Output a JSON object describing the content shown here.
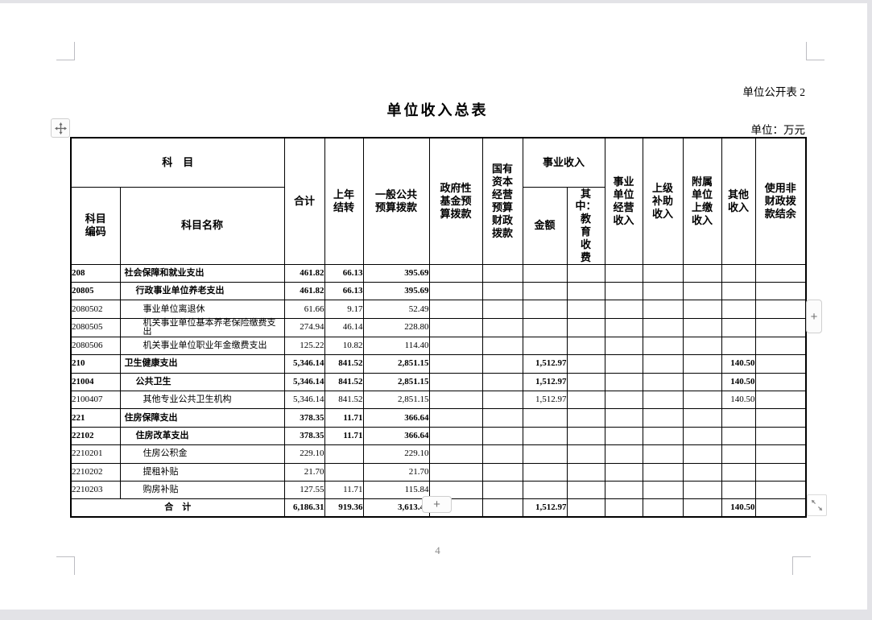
{
  "doc": {
    "corner_label": "单位公开表 2",
    "title": "单位收入总表",
    "unit_note": "单位：万元",
    "page_number": "4"
  },
  "table": {
    "header": {
      "subject": "科　目",
      "subject_code": "科目\n编码",
      "subject_name": "科目名称",
      "total": "合计",
      "prev_year_carryover": "上年\n结转",
      "general_public_budget": "一般公共\n预算拨款",
      "gov_fund_budget": "政府性\n基金预\n算拨款",
      "state_capital_budget": "国有\n资本\n经营\n预算\n财政\n拨款",
      "business_income": "事业收入",
      "business_income_amount": "金额",
      "business_income_education": "其\n中：\n教\n育\n收\n费",
      "business_operating_income": "事业\n单位\n经营\n收入",
      "superior_subsidy_income": "上级\n补助\n收入",
      "affiliated_remitted_income": "附属\n单位\n上缴\n收入",
      "other_income": "其他\n收入",
      "non_fiscal_balance": "使用非\n财政拨\n款结余"
    },
    "rows": [
      {
        "code": "208",
        "name": "社会保障和就业支出",
        "level": 1,
        "bold": true,
        "values": [
          "461.82",
          "66.13",
          "395.69",
          "",
          "",
          "",
          "",
          "",
          "",
          "",
          "",
          ""
        ]
      },
      {
        "code": "20805",
        "name": "行政事业单位养老支出",
        "level": 2,
        "bold": true,
        "values": [
          "461.82",
          "66.13",
          "395.69",
          "",
          "",
          "",
          "",
          "",
          "",
          "",
          "",
          ""
        ]
      },
      {
        "code": "2080502",
        "name": "事业单位离退休",
        "level": 3,
        "bold": false,
        "values": [
          "61.66",
          "9.17",
          "52.49",
          "",
          "",
          "",
          "",
          "",
          "",
          "",
          "",
          ""
        ]
      },
      {
        "code": "2080505",
        "name": "机关事业单位基本养老保险缴费支出",
        "level": 3,
        "bold": false,
        "values": [
          "274.94",
          "46.14",
          "228.80",
          "",
          "",
          "",
          "",
          "",
          "",
          "",
          "",
          ""
        ]
      },
      {
        "code": "2080506",
        "name": "机关事业单位职业年金缴费支出",
        "level": 3,
        "bold": false,
        "values": [
          "125.22",
          "10.82",
          "114.40",
          "",
          "",
          "",
          "",
          "",
          "",
          "",
          "",
          ""
        ]
      },
      {
        "code": "210",
        "name": "卫生健康支出",
        "level": 1,
        "bold": true,
        "values": [
          "5,346.14",
          "841.52",
          "2,851.15",
          "",
          "",
          "1,512.97",
          "",
          "",
          "",
          "",
          "140.50",
          ""
        ]
      },
      {
        "code": "21004",
        "name": "公共卫生",
        "level": 2,
        "bold": true,
        "values": [
          "5,346.14",
          "841.52",
          "2,851.15",
          "",
          "",
          "1,512.97",
          "",
          "",
          "",
          "",
          "140.50",
          ""
        ]
      },
      {
        "code": "2100407",
        "name": "其他专业公共卫生机构",
        "level": 3,
        "bold": false,
        "values": [
          "5,346.14",
          "841.52",
          "2,851.15",
          "",
          "",
          "1,512.97",
          "",
          "",
          "",
          "",
          "140.50",
          ""
        ]
      },
      {
        "code": "221",
        "name": "住房保障支出",
        "level": 1,
        "bold": true,
        "values": [
          "378.35",
          "11.71",
          "366.64",
          "",
          "",
          "",
          "",
          "",
          "",
          "",
          "",
          ""
        ]
      },
      {
        "code": "22102",
        "name": "住房改革支出",
        "level": 2,
        "bold": true,
        "values": [
          "378.35",
          "11.71",
          "366.64",
          "",
          "",
          "",
          "",
          "",
          "",
          "",
          "",
          ""
        ]
      },
      {
        "code": "2210201",
        "name": "住房公积金",
        "level": 3,
        "bold": false,
        "values": [
          "229.10",
          "",
          "229.10",
          "",
          "",
          "",
          "",
          "",
          "",
          "",
          "",
          ""
        ]
      },
      {
        "code": "2210202",
        "name": "提租补贴",
        "level": 3,
        "bold": false,
        "values": [
          "21.70",
          "",
          "21.70",
          "",
          "",
          "",
          "",
          "",
          "",
          "",
          "",
          ""
        ]
      },
      {
        "code": "2210203",
        "name": "购房补贴",
        "level": 3,
        "bold": false,
        "values": [
          "127.55",
          "11.71",
          "115.84",
          "",
          "",
          "",
          "",
          "",
          "",
          "",
          "",
          ""
        ]
      }
    ],
    "total_row": {
      "label": "合　计",
      "values": [
        "6,186.31",
        "919.36",
        "3,613.48",
        "",
        "",
        "1,512.97",
        "",
        "",
        "",
        "",
        "140.50",
        ""
      ]
    }
  },
  "controls": {
    "plus_right_label": "+",
    "plus_bottom_label": "+"
  },
  "colors": {
    "table_border": "#000000",
    "page_background": "#ffffff",
    "window_edge": "#e3e3e7",
    "boundary_mark": "#bdbdc2",
    "control_foreground": "#707070",
    "page_number_gray": "#8a8a8a"
  }
}
